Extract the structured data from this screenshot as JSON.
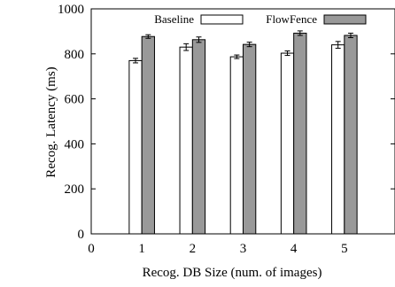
{
  "chart_data": {
    "type": "bar",
    "xlabel": "Recog. DB Size (num. of images)",
    "ylabel": "Recog. Latency (ms)",
    "xlim": [
      0,
      6
    ],
    "ylim": [
      0,
      1000
    ],
    "x_ticks": [
      "0",
      "1",
      "2",
      "3",
      "4",
      "5"
    ],
    "y_ticks": [
      "0",
      "200",
      "400",
      "600",
      "800",
      "1000"
    ],
    "categories": [
      1,
      2,
      3,
      4,
      5
    ],
    "legend_position": "top",
    "grid": false,
    "series": [
      {
        "name": "Baseline",
        "color": "#ffffff",
        "values": [
          770,
          830,
          787,
          803,
          840
        ],
        "errors": [
          10,
          15,
          8,
          10,
          15
        ]
      },
      {
        "name": "FlowFence",
        "color": "#999999",
        "values": [
          877,
          863,
          842,
          892,
          882
        ],
        "errors": [
          8,
          12,
          10,
          10,
          10
        ]
      }
    ]
  }
}
